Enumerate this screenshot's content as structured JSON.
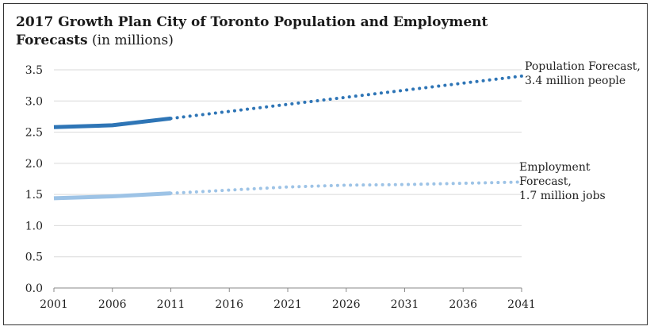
{
  "chart_data": {
    "type": "line",
    "title": "2017 Growth Plan City of Toronto Population and Employment Forecasts",
    "title_suffix": "(in millions)",
    "x": [
      2001,
      2006,
      2011,
      2016,
      2021,
      2026,
      2031,
      2036,
      2041
    ],
    "x_ticks": [
      "2001",
      "2006",
      "2011",
      "2016",
      "2021",
      "2026",
      "2031",
      "2036",
      "2041"
    ],
    "y_ticks": [
      "0.0",
      "0.5",
      "1.0",
      "1.5",
      "2.0",
      "2.5",
      "3.0",
      "3.5"
    ],
    "xlim": [
      2001,
      2041
    ],
    "ylim": [
      0,
      3.5
    ],
    "grid": true,
    "series": [
      {
        "name": "Population Forecast",
        "color": "#2e75b6",
        "actual": {
          "x": [
            2001,
            2006,
            2011
          ],
          "y": [
            2.58,
            2.61,
            2.72
          ]
        },
        "forecast": {
          "x": [
            2011,
            2041
          ],
          "y": [
            2.72,
            3.4
          ]
        }
      },
      {
        "name": "Employment Forecast",
        "color": "#9dc3e6",
        "actual": {
          "x": [
            2001,
            2006,
            2011
          ],
          "y": [
            1.44,
            1.47,
            1.52
          ]
        },
        "forecast": {
          "x": [
            2011,
            2016,
            2021,
            2026,
            2031,
            2036,
            2041
          ],
          "y": [
            1.52,
            1.57,
            1.62,
            1.65,
            1.66,
            1.68,
            1.7
          ]
        }
      }
    ],
    "annotations": {
      "population": "Population Forecast,\n3.4 million people",
      "employment": "Employment\nForecast,\n1.7 million jobs"
    }
  }
}
